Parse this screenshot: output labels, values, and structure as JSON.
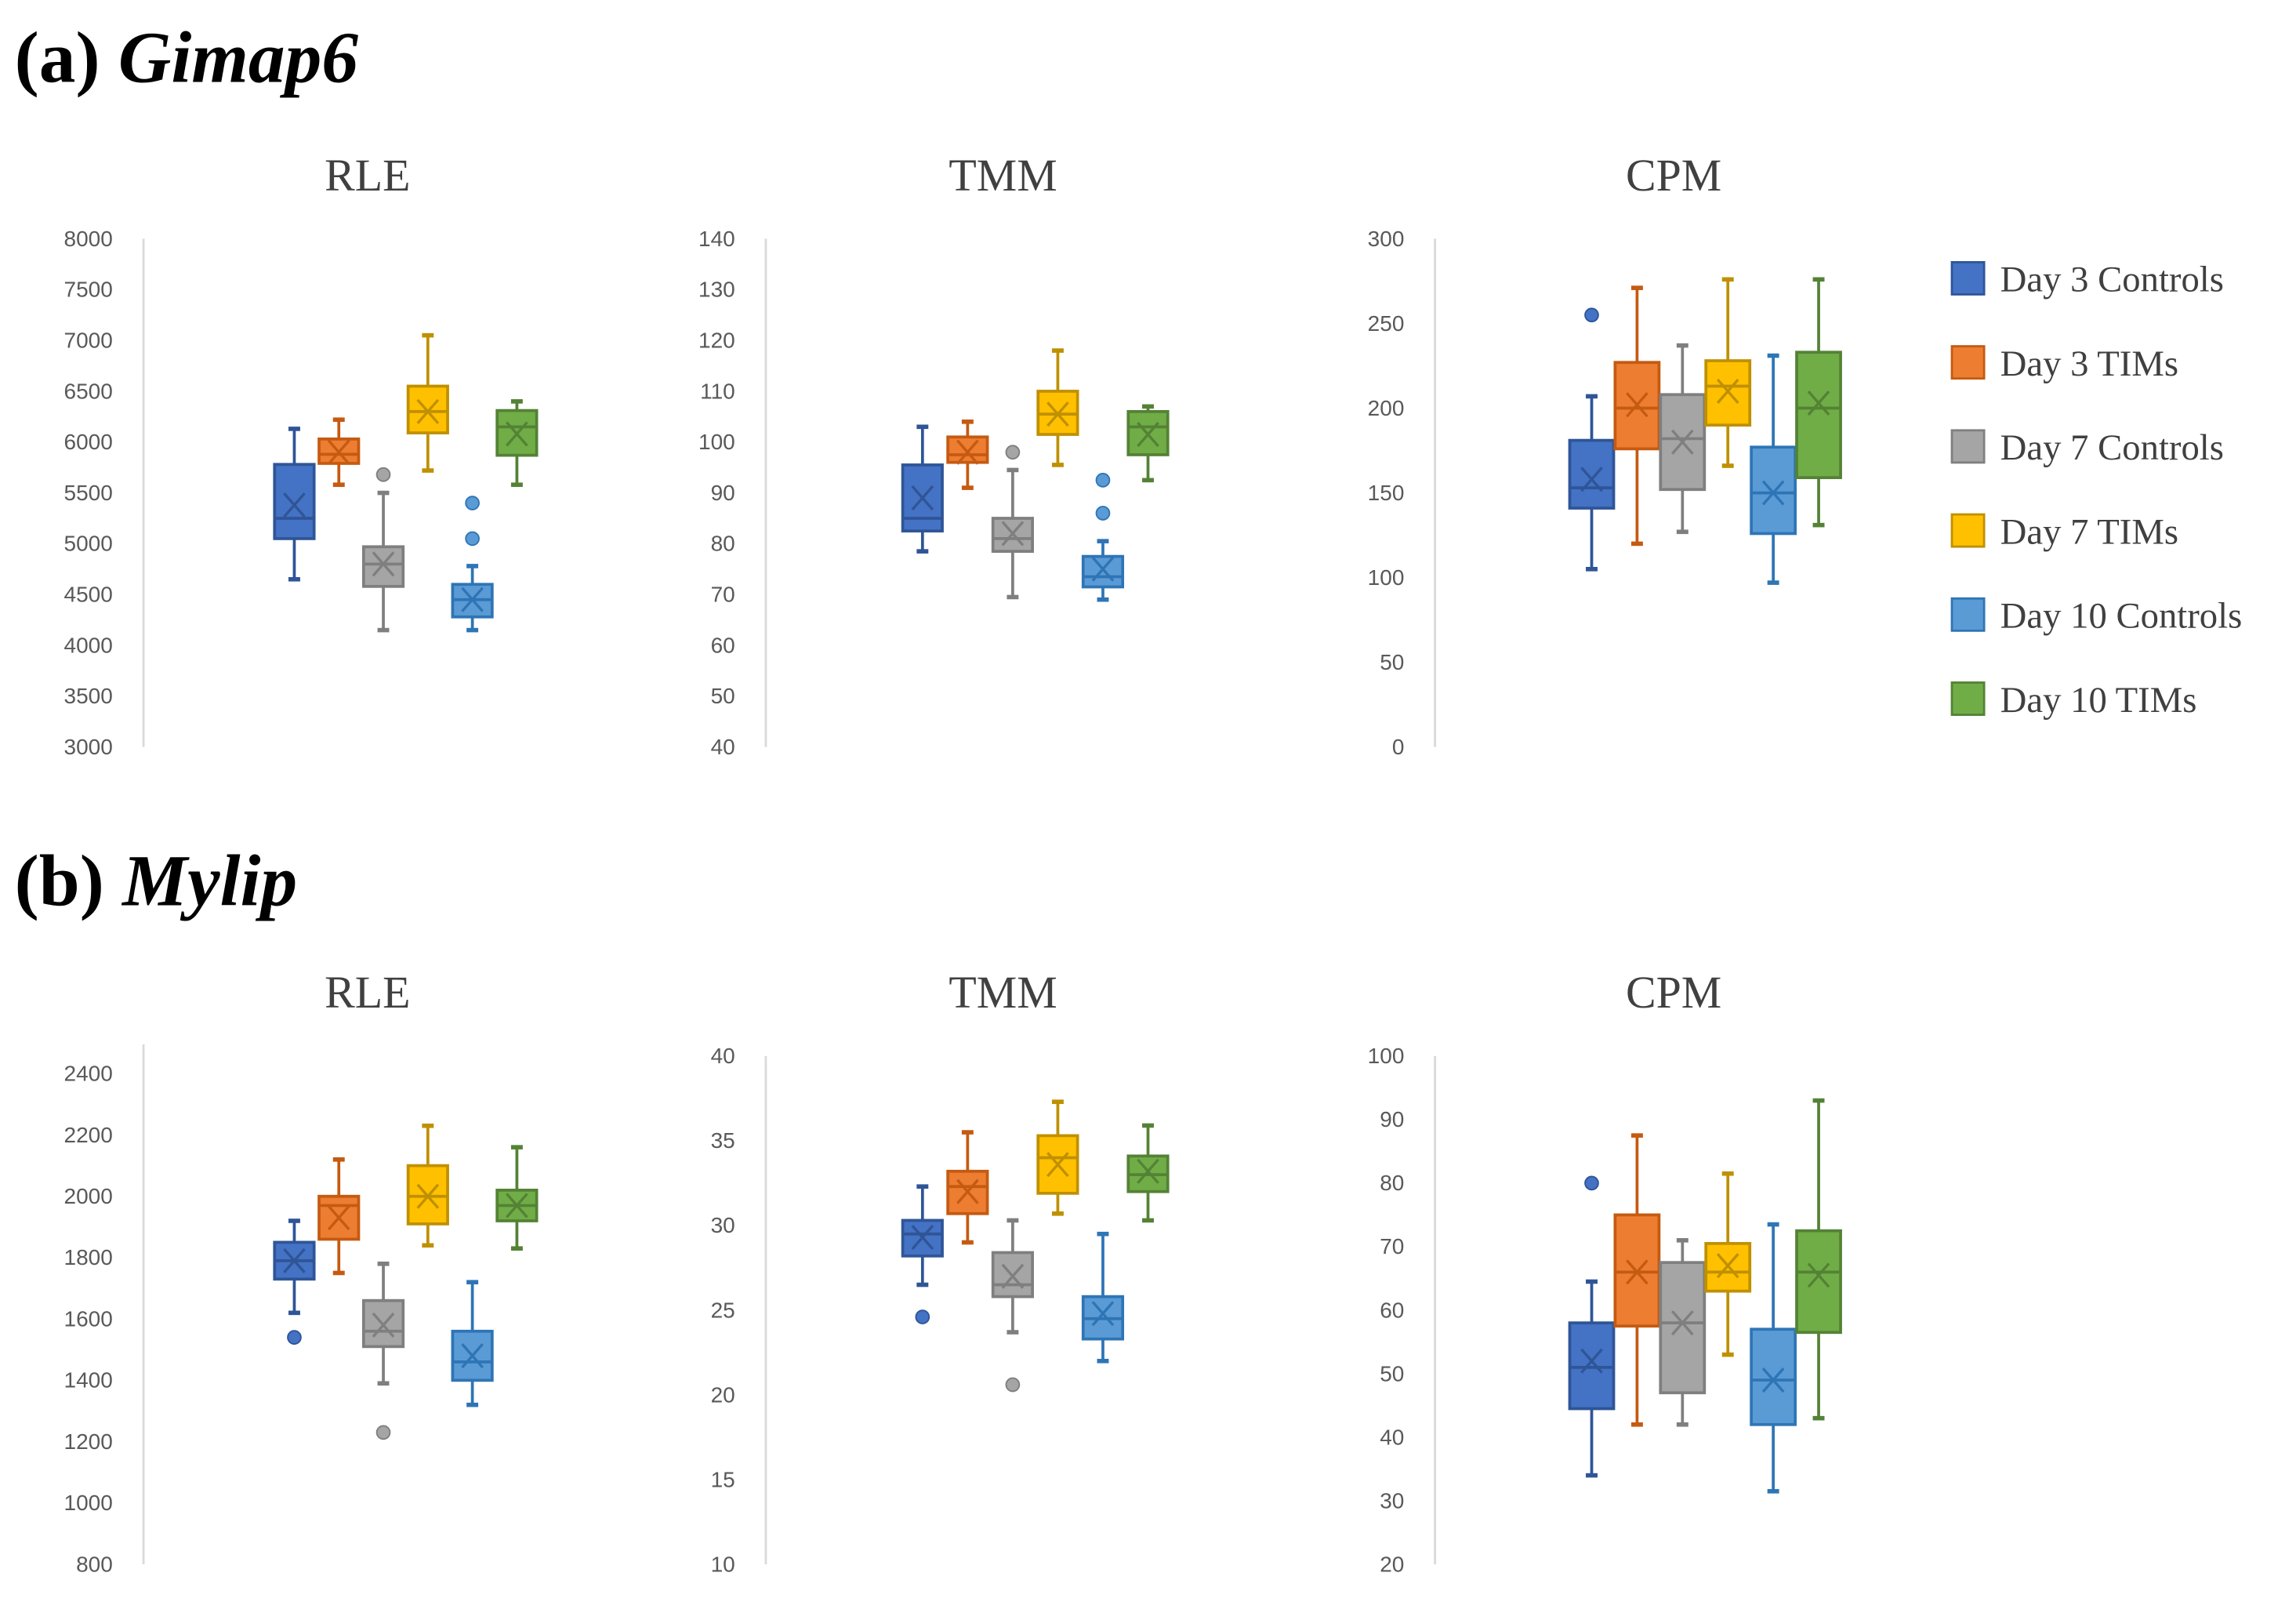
{
  "headings": [
    {
      "prefix": "(a)",
      "gene": "Gimap6"
    },
    {
      "prefix": "(b)",
      "gene": "Mylip"
    }
  ],
  "legend": [
    {
      "label": "Day 3 Controls",
      "color": "#4472C4",
      "stroke": "#2F5597"
    },
    {
      "label": "Day 3 TIMs",
      "color": "#ED7D31",
      "stroke": "#C55A11"
    },
    {
      "label": "Day 7 Controls",
      "color": "#A5A5A5",
      "stroke": "#7F7F7F"
    },
    {
      "label": "Day 7 TIMs",
      "color": "#FFC000",
      "stroke": "#BF9000"
    },
    {
      "label": "Day 10 Controls",
      "color": "#5B9BD5",
      "stroke": "#2E75B6"
    },
    {
      "label": "Day 10 TIMs",
      "color": "#70AD47",
      "stroke": "#548235"
    }
  ],
  "chart_data": [
    {
      "type": "box",
      "gene": "Gimap6",
      "title": "RLE",
      "ylim": [
        3000,
        8000
      ],
      "ticks": [
        3000,
        3500,
        4000,
        4500,
        5000,
        5500,
        6000,
        6500,
        7000,
        7500,
        8000
      ],
      "series": [
        {
          "name": "Day 3 Controls",
          "min": 4650,
          "q1": 5050,
          "median": 5250,
          "q3": 5780,
          "max": 6130,
          "mean": 5380,
          "outliers": []
        },
        {
          "name": "Day 3 TIMs",
          "min": 5580,
          "q1": 5790,
          "median": 5880,
          "q3": 6030,
          "max": 6220,
          "mean": 5900,
          "outliers": []
        },
        {
          "name": "Day 7 Controls",
          "min": 4150,
          "q1": 4580,
          "median": 4800,
          "q3": 4970,
          "max": 5500,
          "mean": 4800,
          "outliers": [
            5680
          ]
        },
        {
          "name": "Day 7 TIMs",
          "min": 5720,
          "q1": 6090,
          "median": 6300,
          "q3": 6550,
          "max": 7050,
          "mean": 6300,
          "outliers": []
        },
        {
          "name": "Day 10 Controls",
          "min": 4150,
          "q1": 4280,
          "median": 4450,
          "q3": 4600,
          "max": 4780,
          "mean": 4450,
          "outliers": [
            5050,
            5400
          ]
        },
        {
          "name": "Day 10 TIMs",
          "min": 5580,
          "q1": 5870,
          "median": 6150,
          "q3": 6310,
          "max": 6400,
          "mean": 6080,
          "outliers": []
        }
      ]
    },
    {
      "type": "box",
      "gene": "Gimap6",
      "title": "TMM",
      "ylim": [
        40,
        140
      ],
      "ticks": [
        40,
        50,
        60,
        70,
        80,
        90,
        100,
        110,
        120,
        130,
        140
      ],
      "series": [
        {
          "name": "Day 3 Controls",
          "min": 78.5,
          "q1": 82.5,
          "median": 85,
          "q3": 95.5,
          "max": 103,
          "mean": 89,
          "outliers": []
        },
        {
          "name": "Day 3 TIMs",
          "min": 91,
          "q1": 96,
          "median": 97.5,
          "q3": 101,
          "max": 104,
          "mean": 98,
          "outliers": []
        },
        {
          "name": "Day 7 Controls",
          "min": 69.5,
          "q1": 78.5,
          "median": 81,
          "q3": 85,
          "max": 94.5,
          "mean": 82,
          "outliers": [
            98
          ]
        },
        {
          "name": "Day 7 TIMs",
          "min": 95.5,
          "q1": 101.5,
          "median": 105.5,
          "q3": 110,
          "max": 118,
          "mean": 105.5,
          "outliers": []
        },
        {
          "name": "Day 10 Controls",
          "min": 69,
          "q1": 71.5,
          "median": 73.5,
          "q3": 77.5,
          "max": 80.5,
          "mean": 75,
          "outliers": [
            86,
            92.5
          ]
        },
        {
          "name": "Day 10 TIMs",
          "min": 92.5,
          "q1": 97.5,
          "median": 103,
          "q3": 106,
          "max": 107,
          "mean": 101.5,
          "outliers": []
        }
      ]
    },
    {
      "type": "box",
      "gene": "Gimap6",
      "title": "CPM",
      "ylim": [
        0,
        300
      ],
      "ticks": [
        0,
        50,
        100,
        150,
        200,
        250,
        300
      ],
      "series": [
        {
          "name": "Day 3 Controls",
          "min": 105,
          "q1": 141,
          "median": 153,
          "q3": 181,
          "max": 207,
          "mean": 158,
          "outliers": [
            255
          ]
        },
        {
          "name": "Day 3 TIMs",
          "min": 120,
          "q1": 176,
          "median": 200,
          "q3": 227,
          "max": 271,
          "mean": 202,
          "outliers": []
        },
        {
          "name": "Day 7 Controls",
          "min": 127,
          "q1": 152,
          "median": 182,
          "q3": 208,
          "max": 237,
          "mean": 180,
          "outliers": []
        },
        {
          "name": "Day 7 TIMs",
          "min": 166,
          "q1": 190,
          "median": 213,
          "q3": 228,
          "max": 276,
          "mean": 210,
          "outliers": []
        },
        {
          "name": "Day 10 Controls",
          "min": 97,
          "q1": 126,
          "median": 150,
          "q3": 177,
          "max": 231,
          "mean": 150,
          "outliers": []
        },
        {
          "name": "Day 10 TIMs",
          "min": 131,
          "q1": 159,
          "median": 200,
          "q3": 233,
          "max": 276,
          "mean": 203,
          "outliers": []
        }
      ]
    },
    {
      "type": "box",
      "gene": "Mylip",
      "title": "RLE",
      "ylim": [
        800,
        2400
      ],
      "ticks": [
        800,
        1000,
        1200,
        1400,
        1600,
        1800,
        2000,
        2200,
        2400
      ],
      "series": [
        {
          "name": "Day 3 Controls",
          "min": 1620,
          "q1": 1730,
          "median": 1790,
          "q3": 1850,
          "max": 1920,
          "mean": 1790,
          "outliers": [
            1540
          ]
        },
        {
          "name": "Day 3 TIMs",
          "min": 1750,
          "q1": 1860,
          "median": 1970,
          "q3": 2000,
          "max": 2120,
          "mean": 1930,
          "outliers": []
        },
        {
          "name": "Day 7 Controls",
          "min": 1390,
          "q1": 1510,
          "median": 1560,
          "q3": 1660,
          "max": 1780,
          "mean": 1580,
          "outliers": [
            1230
          ]
        },
        {
          "name": "Day 7 TIMs",
          "min": 1840,
          "q1": 1910,
          "median": 2000,
          "q3": 2100,
          "max": 2230,
          "mean": 2000,
          "outliers": []
        },
        {
          "name": "Day 10 Controls",
          "min": 1320,
          "q1": 1400,
          "median": 1460,
          "q3": 1560,
          "max": 1720,
          "mean": 1480,
          "outliers": []
        },
        {
          "name": "Day 10 TIMs",
          "min": 1830,
          "q1": 1920,
          "median": 1970,
          "q3": 2020,
          "max": 2160,
          "mean": 1970,
          "outliers": []
        }
      ]
    },
    {
      "type": "box",
      "gene": "Mylip",
      "title": "TMM",
      "ylim": [
        10,
        40
      ],
      "ticks": [
        10,
        15,
        20,
        25,
        30,
        35,
        40
      ],
      "series": [
        {
          "name": "Day 3 Controls",
          "min": 26.5,
          "q1": 28.2,
          "median": 29.5,
          "q3": 30.3,
          "max": 32.3,
          "mean": 29.3,
          "outliers": [
            24.6
          ]
        },
        {
          "name": "Day 3 TIMs",
          "min": 29,
          "q1": 30.7,
          "median": 32.3,
          "q3": 33.2,
          "max": 35.5,
          "mean": 32,
          "outliers": []
        },
        {
          "name": "Day 7 Controls",
          "min": 23.7,
          "q1": 25.8,
          "median": 26.5,
          "q3": 28.4,
          "max": 30.3,
          "mean": 27,
          "outliers": [
            20.6
          ]
        },
        {
          "name": "Day 7 TIMs",
          "min": 30.7,
          "q1": 31.9,
          "median": 34,
          "q3": 35.3,
          "max": 37.3,
          "mean": 33.6,
          "outliers": []
        },
        {
          "name": "Day 10 Controls",
          "min": 22,
          "q1": 23.3,
          "median": 24.5,
          "q3": 25.8,
          "max": 29.5,
          "mean": 24.8,
          "outliers": []
        },
        {
          "name": "Day 10 TIMs",
          "min": 30.3,
          "q1": 32,
          "median": 33,
          "q3": 34.1,
          "max": 35.9,
          "mean": 33.2,
          "outliers": []
        }
      ]
    },
    {
      "type": "box",
      "gene": "Mylip",
      "title": "CPM",
      "ylim": [
        20,
        100
      ],
      "ticks": [
        20,
        30,
        40,
        50,
        60,
        70,
        80,
        90,
        100
      ],
      "series": [
        {
          "name": "Day 3 Controls",
          "min": 34,
          "q1": 44.5,
          "median": 51,
          "q3": 58,
          "max": 64.5,
          "mean": 52,
          "outliers": [
            80
          ]
        },
        {
          "name": "Day 3 TIMs",
          "min": 42,
          "q1": 57.5,
          "median": 66,
          "q3": 75,
          "max": 87.5,
          "mean": 66,
          "outliers": []
        },
        {
          "name": "Day 7 Controls",
          "min": 42,
          "q1": 47,
          "median": 58,
          "q3": 67.5,
          "max": 71,
          "mean": 58,
          "outliers": []
        },
        {
          "name": "Day 7 TIMs",
          "min": 53,
          "q1": 63,
          "median": 66,
          "q3": 70.5,
          "max": 81.5,
          "mean": 67,
          "outliers": []
        },
        {
          "name": "Day 10 Controls",
          "min": 31.5,
          "q1": 42,
          "median": 49,
          "q3": 57,
          "max": 73.5,
          "mean": 49,
          "outliers": []
        },
        {
          "name": "Day 10 TIMs",
          "min": 43,
          "q1": 56.5,
          "median": 66,
          "q3": 72.5,
          "max": 93,
          "mean": 65.5,
          "outliers": []
        }
      ]
    }
  ]
}
